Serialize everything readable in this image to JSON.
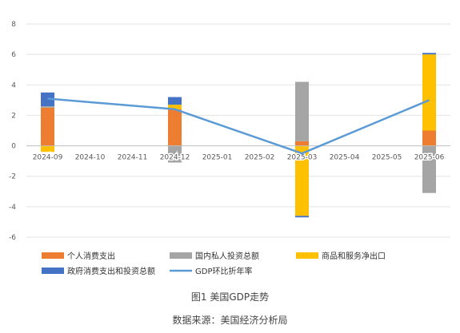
{
  "chart_data": {
    "type": "bar",
    "stacked": true,
    "categories": [
      "2024-09",
      "2024-10",
      "2024-11",
      "2024-12",
      "2025-01",
      "2025-02",
      "2025-03",
      "2025-04",
      "2025-05",
      "2025-06"
    ],
    "series": [
      {
        "name": "个人消费支出",
        "kind": "bar",
        "color": "#ED7D31",
        "values": [
          2.5,
          null,
          null,
          2.4,
          null,
          null,
          0.3,
          null,
          null,
          1.0
        ]
      },
      {
        "name": "国内私人投资总额",
        "kind": "bar",
        "color": "#A5A5A5",
        "values": [
          0.1,
          null,
          null,
          -1.1,
          null,
          null,
          3.9,
          null,
          null,
          -3.1
        ]
      },
      {
        "name": "商品和服务净出口",
        "kind": "bar",
        "color": "#FFC000",
        "values": [
          -0.4,
          null,
          null,
          0.3,
          null,
          null,
          -4.6,
          null,
          null,
          5.0
        ]
      },
      {
        "name": "政府消费支出和投资总额",
        "kind": "bar",
        "color": "#4472C4",
        "values": [
          0.9,
          null,
          null,
          0.5,
          null,
          null,
          -0.1,
          null,
          null,
          0.1
        ]
      },
      {
        "name": "GDP环比折年率",
        "kind": "line",
        "color": "#5B9BD5",
        "x": [
          "2024-09",
          "2024-12",
          "2025-03",
          "2025-06"
        ],
        "values": [
          3.1,
          2.4,
          -0.5,
          3.0
        ]
      }
    ],
    "ylim": [
      -6,
      8
    ],
    "yticks": [
      "8",
      "6",
      "4",
      "2",
      "0",
      "-2",
      "-4",
      "-6"
    ],
    "grid": true,
    "legend_position": "bottom"
  },
  "caption": {
    "title": "图1 美国GDP走势",
    "source": "数据来源：美国经济分析局"
  }
}
